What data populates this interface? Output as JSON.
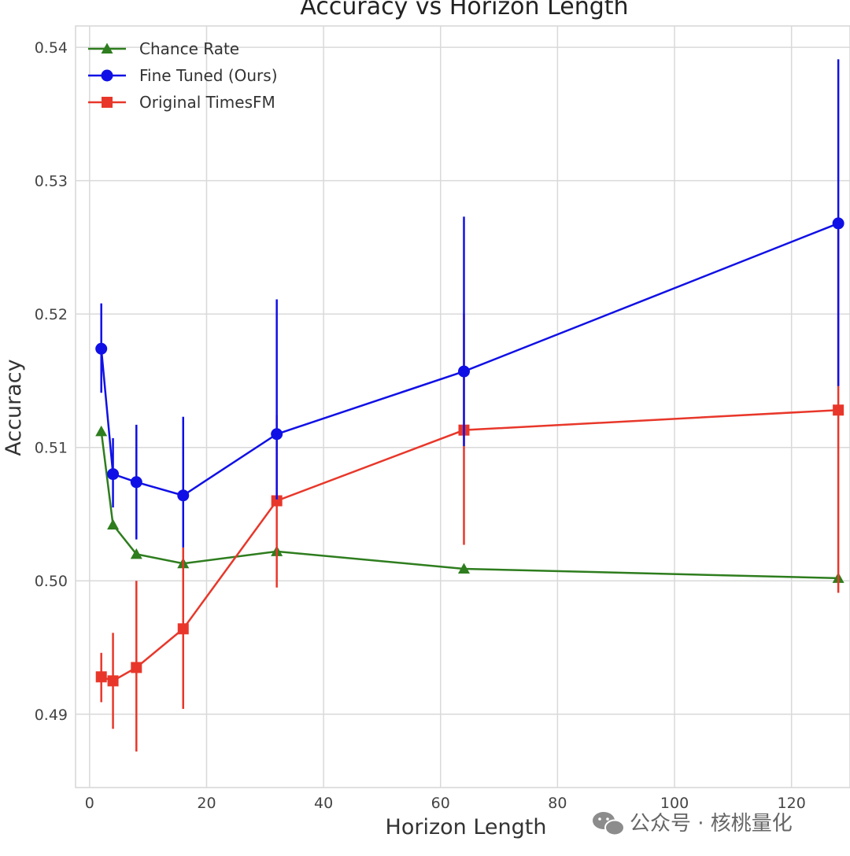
{
  "watermark": {
    "text": "公众号 · 核桃量化",
    "icon": "wechat-icon"
  },
  "chart_data": {
    "type": "line",
    "title": "Accuracy vs Horizon Length",
    "xlabel": "Horizon Length",
    "ylabel": "Accuracy",
    "xlim": [
      -2.4,
      130
    ],
    "ylim": [
      0.4845,
      0.5416
    ],
    "xticks": [
      0,
      20,
      40,
      60,
      80,
      100,
      120
    ],
    "yticks": [
      0.49,
      0.5,
      0.51,
      0.52,
      0.53,
      0.54
    ],
    "ytick_labels": [
      "0.49",
      "0.50",
      "0.51",
      "0.52",
      "0.53",
      "0.54"
    ],
    "grid": true,
    "legend_position": "top-left",
    "x": [
      2,
      4,
      8,
      16,
      32,
      64,
      128
    ],
    "series": [
      {
        "name": "Chance Rate",
        "marker": "triangle",
        "color": "#2e7d1e",
        "values": [
          0.5112,
          0.5042,
          0.502,
          0.5013,
          0.5022,
          0.5009,
          0.5002
        ]
      },
      {
        "name": "Fine Tuned (Ours)",
        "marker": "circle",
        "color": "#1010e6",
        "values": [
          0.5174,
          0.508,
          0.5074,
          0.5064,
          0.511,
          0.5157,
          0.5268
        ],
        "error_low": [
          0.5141,
          0.5055,
          0.5031,
          0.5025,
          0.5061,
          0.5101,
          0.5146
        ],
        "error_high": [
          0.5208,
          0.5107,
          0.5117,
          0.5123,
          0.5211,
          0.5273,
          0.5391
        ]
      },
      {
        "name": "Original TimesFM",
        "marker": "square",
        "color": "#e8372a",
        "values": [
          0.4928,
          0.4925,
          0.4935,
          0.4964,
          0.506,
          0.5113,
          0.5128
        ],
        "error_low": [
          0.4909,
          0.4889,
          0.4872,
          0.4904,
          0.4995,
          0.5027,
          0.4991
        ],
        "error_high": [
          0.4946,
          0.4961,
          0.5,
          0.5025,
          0.5124,
          0.52,
          0.5265
        ]
      }
    ]
  }
}
